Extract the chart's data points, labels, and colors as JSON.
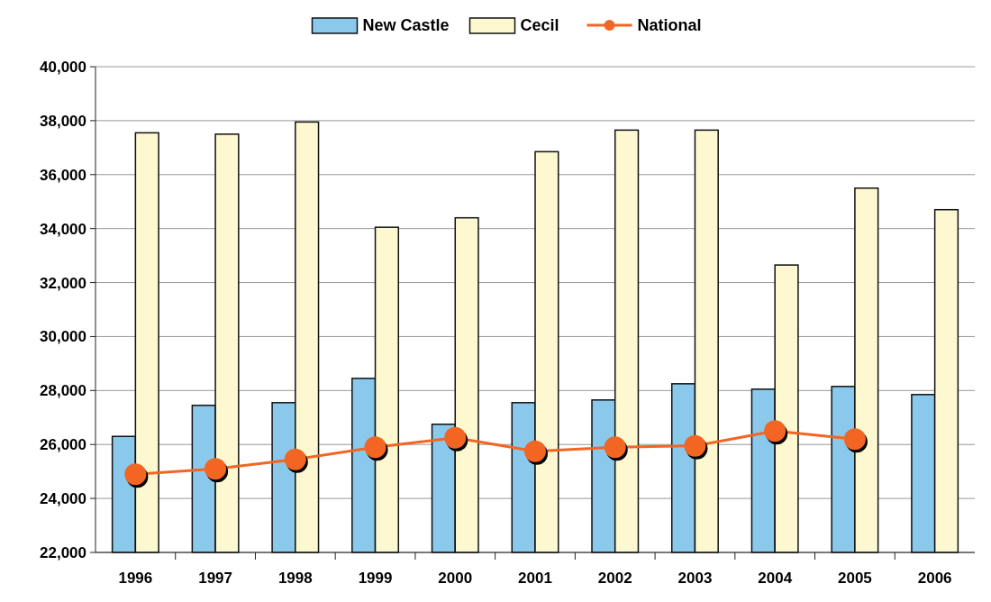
{
  "chart_data": {
    "type": "bar",
    "categories": [
      "1996",
      "1997",
      "1998",
      "1999",
      "2000",
      "2001",
      "2002",
      "2003",
      "2004",
      "2005",
      "2006"
    ],
    "series": [
      {
        "name": "New Castle",
        "color": "#8ac8ec",
        "values": [
          26300,
          27450,
          27550,
          28450,
          26750,
          27550,
          27650,
          28250,
          28050,
          28150,
          27850
        ]
      },
      {
        "name": "Cecil",
        "color": "#fdf8d0",
        "values": [
          37550,
          37500,
          37950,
          34050,
          34400,
          36850,
          37650,
          37650,
          32650,
          35500,
          34700
        ]
      },
      {
        "name": "National",
        "type": "line",
        "color": "#f26522",
        "values": [
          24900,
          25100,
          25450,
          25900,
          26250,
          25750,
          25900,
          25950,
          26500,
          26200,
          null
        ]
      }
    ],
    "ylim": [
      22000,
      40000
    ],
    "yticks": [
      {
        "value": 22000,
        "label": "22,000"
      },
      {
        "value": 24000,
        "label": "24,000"
      },
      {
        "value": 26000,
        "label": "26,000"
      },
      {
        "value": 28000,
        "label": "28,000"
      },
      {
        "value": 30000,
        "label": "30,000"
      },
      {
        "value": 32000,
        "label": "32,000"
      },
      {
        "value": 34000,
        "label": "34,000"
      },
      {
        "value": 36000,
        "label": "36,000"
      },
      {
        "value": 38000,
        "label": "38,000"
      },
      {
        "value": 40000,
        "label": "40,000"
      }
    ],
    "grid": "y",
    "legend": "top",
    "marker": "circle"
  }
}
